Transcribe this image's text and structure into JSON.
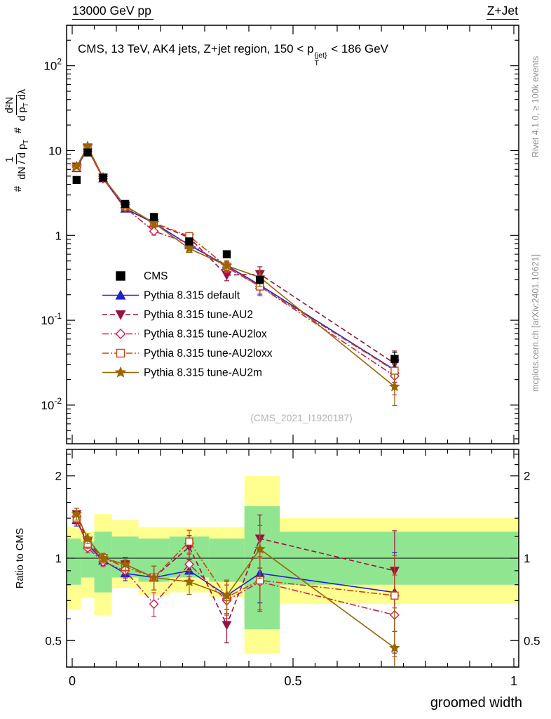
{
  "header": {
    "left": "13000 GeV pp",
    "right": "Z+Jet"
  },
  "side_notes": {
    "right_top": "Rivet 4.1.0, ≥ 100k events",
    "right_bottom": "mcplots.cern.ch [arXiv:2401.10621]"
  },
  "watermark": "(CMS_2021_I1920187)",
  "chart_data": {
    "type": "line",
    "title": {
      "pre": "CMS, 13 TeV, AK4 jets, Z+jet region, 150 < p",
      "sup": "{jet}",
      "sub": "T",
      "post": " < 186 GeV"
    },
    "ylabel": {
      "hash": "#",
      "f1num": "1",
      "f1den_pre": "dN / d p",
      "f1den_sub": "T",
      "f2num": "d²N",
      "f2den_pre": "d p",
      "f2den_sub": "T",
      "f2den_post": " dλ"
    },
    "ratio_ylabel": "Ratio to CMS",
    "xlabel": "groomed width",
    "axes": {
      "x_range": [
        0,
        1
      ],
      "main_y_range": [
        0.0035,
        300
      ],
      "ratio_y_range": [
        0.4,
        2.5
      ],
      "main_log": true,
      "ratio_log": true,
      "grid": false,
      "legend_position": "center-left"
    },
    "x_ticks": [
      {
        "value": 0,
        "label": "0"
      },
      {
        "value": 0.5,
        "label": "0.5"
      },
      {
        "value": 1,
        "label": "1"
      }
    ],
    "main_y_ticks": [
      {
        "value": 100,
        "label": "10",
        "exp": "2"
      },
      {
        "value": 10,
        "label": "10",
        "exp": ""
      },
      {
        "value": 1,
        "label": "1",
        "exp": ""
      },
      {
        "value": 0.1,
        "label": "10",
        "exp": "-1"
      },
      {
        "value": 0.01,
        "label": "10",
        "exp": "-2"
      }
    ],
    "ratio_y_ticks": [
      {
        "value": 2,
        "label": "2"
      },
      {
        "value": 1,
        "label": "1"
      },
      {
        "value": 0.5,
        "label": "0.5"
      }
    ],
    "x": [
      0.01,
      0.035,
      0.07,
      0.12,
      0.185,
      0.265,
      0.35,
      0.425,
      0.73
    ],
    "cms": {
      "label": "CMS",
      "color": "#000000",
      "marker": "square",
      "values": [
        4.5,
        9.5,
        4.8,
        2.35,
        1.65,
        0.85,
        0.6,
        0.3,
        0.035
      ],
      "rel_err": [
        0.04,
        0.03,
        0.03,
        0.04,
        0.05,
        0.06,
        0.08,
        0.1,
        0.2
      ]
    },
    "rel_err": [
      0.05,
      0.04,
      0.04,
      0.06,
      0.1,
      0.1,
      0.14,
      0.22,
      0.4
    ],
    "series": [
      {
        "label": "Pythia 8.315 default",
        "color": "#2222cc",
        "marker": "triangle-up",
        "line": "solid",
        "values": [
          6.2,
          10.6,
          4.7,
          2.07,
          1.4,
          0.77,
          0.44,
          0.26,
          0.026
        ],
        "ratio": [
          1.38,
          1.12,
          0.98,
          0.88,
          0.85,
          0.9,
          0.73,
          0.88,
          0.75
        ]
      },
      {
        "label": "Pythia 8.315 tune-AU2",
        "color": "#991144",
        "marker": "triangle-down",
        "line": "dashed",
        "values": [
          6.5,
          10.9,
          4.8,
          2.23,
          1.4,
          0.94,
          0.34,
          0.35,
          0.031
        ],
        "ratio": [
          1.45,
          1.15,
          1.0,
          0.95,
          0.85,
          1.1,
          0.57,
          1.18,
          0.9
        ]
      },
      {
        "label": "Pythia 8.315 tune-AU2lox",
        "color": "#cc2255",
        "marker": "diamond-open",
        "line": "dashdot",
        "values": [
          6.4,
          10.4,
          4.66,
          2.12,
          1.12,
          0.81,
          0.42,
          0.25,
          0.022
        ],
        "ratio": [
          1.42,
          1.09,
          0.97,
          0.9,
          0.68,
          0.95,
          0.7,
          0.82,
          0.62
        ]
      },
      {
        "label": "Pythia 8.315 tune-AU2loxx",
        "color": "#cc4411",
        "marker": "square-open",
        "line": "dashdot",
        "values": [
          6.3,
          10.7,
          4.8,
          2.19,
          1.4,
          0.98,
          0.43,
          0.25,
          0.0255
        ],
        "ratio": [
          1.4,
          1.13,
          1.0,
          0.93,
          0.85,
          1.15,
          0.72,
          0.83,
          0.73
        ]
      },
      {
        "label": "Pythia 8.315 tune-AU2m",
        "color": "#996600",
        "marker": "star",
        "line": "solid",
        "values": [
          6.5,
          11.2,
          4.8,
          2.23,
          1.4,
          0.7,
          0.44,
          0.32,
          0.0165
        ],
        "ratio": [
          1.45,
          1.18,
          1.0,
          0.95,
          0.85,
          0.82,
          0.73,
          1.08,
          0.47
        ]
      }
    ],
    "bands": {
      "yellow_color": "#ffff8f",
      "green_color": "#90e690",
      "edges": [
        0,
        0.02,
        0.05,
        0.09,
        0.15,
        0.22,
        0.31,
        0.39,
        0.47,
        1.0
      ],
      "yellow": [
        [
          0.65,
          1.3
        ],
        [
          0.72,
          1.25
        ],
        [
          0.62,
          1.45
        ],
        [
          0.78,
          1.38
        ],
        [
          0.73,
          1.3
        ],
        [
          0.75,
          1.3
        ],
        [
          0.72,
          1.3
        ],
        [
          0.45,
          2.0
        ],
        [
          0.68,
          1.4
        ]
      ],
      "green": [
        [
          0.8,
          1.18
        ],
        [
          0.85,
          1.15
        ],
        [
          0.75,
          1.25
        ],
        [
          0.85,
          1.2
        ],
        [
          0.82,
          1.18
        ],
        [
          0.85,
          1.2
        ],
        [
          0.82,
          1.18
        ],
        [
          0.55,
          1.55
        ],
        [
          0.8,
          1.25
        ]
      ]
    }
  }
}
